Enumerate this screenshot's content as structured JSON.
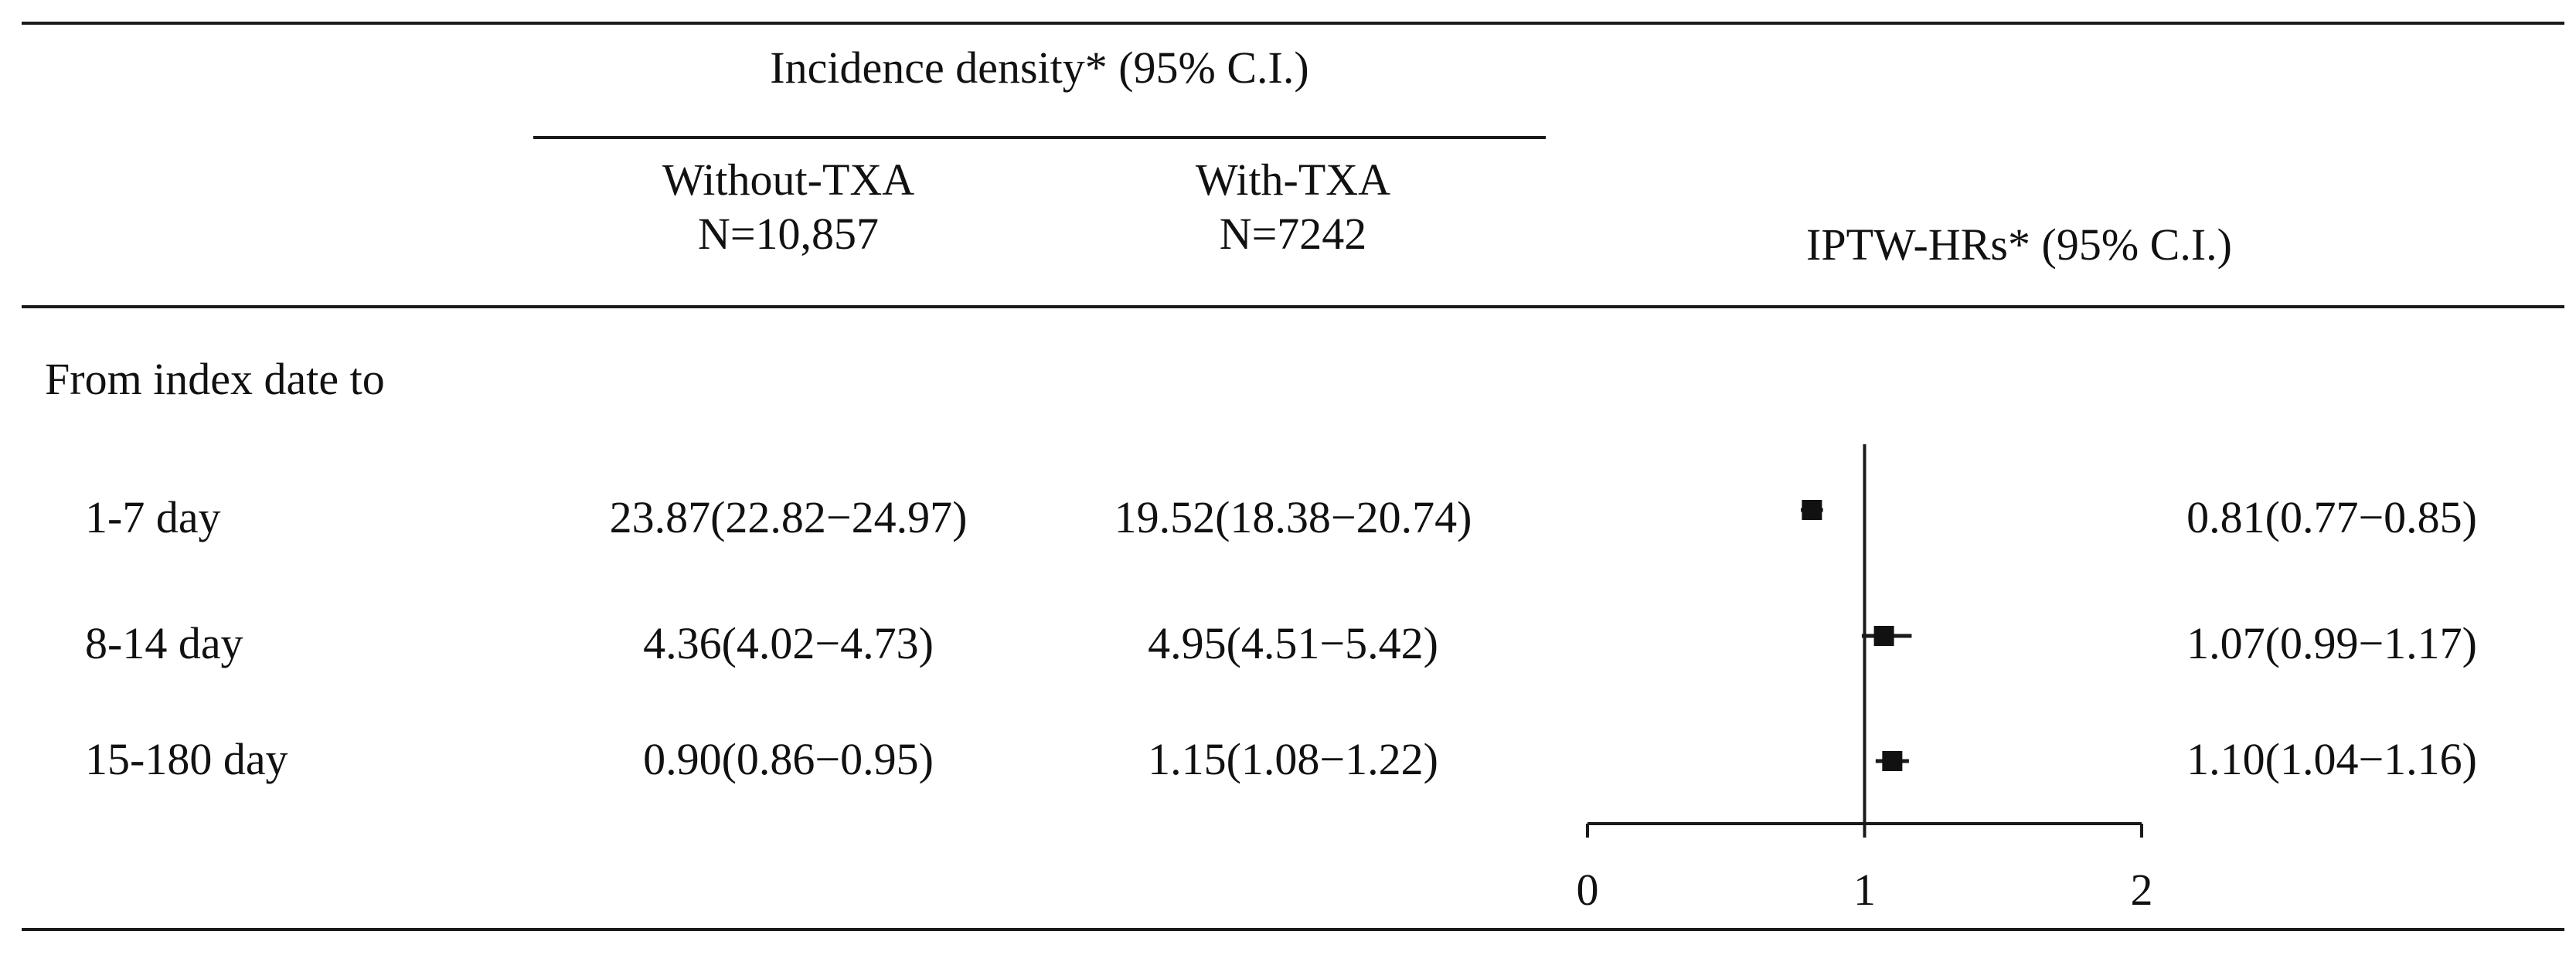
{
  "table": {
    "group_header": "Incidence density* (95% C.I.)",
    "columns": {
      "without": {
        "label": "Without-TXA",
        "n": "N=10,857"
      },
      "with": {
        "label": "With-TXA",
        "n": "N=7242"
      },
      "hr": {
        "label": "IPTW-HRs* (95% C.I.)"
      }
    },
    "section_label": "From index date to",
    "rows": [
      {
        "period": "1-7 day",
        "without": "23.87(22.82−24.97)",
        "with": "19.52(18.38−20.74)",
        "hr": "0.81(0.77−0.85)"
      },
      {
        "period": "8-14 day",
        "without": "4.36(4.02−4.73)",
        "with": "4.95(4.51−5.42)",
        "hr": "1.07(0.99−1.17)"
      },
      {
        "period": "15-180 day",
        "without": "0.90(0.86−0.95)",
        "with": "1.15(1.08−1.22)",
        "hr": "1.10(1.04−1.16)"
      }
    ]
  },
  "chart_data": {
    "type": "scatter",
    "categories": [
      "1-7 day",
      "8-14 day",
      "15-180 day"
    ],
    "series": [
      {
        "values": [
          0.81,
          1.07,
          1.1
        ],
        "lower": [
          0.77,
          0.99,
          1.04
        ],
        "upper": [
          0.85,
          1.17,
          1.16
        ]
      }
    ],
    "xlim": [
      0,
      2
    ],
    "xticks": [
      "0",
      "1",
      "2"
    ],
    "reference_line": 1,
    "grid": false
  }
}
